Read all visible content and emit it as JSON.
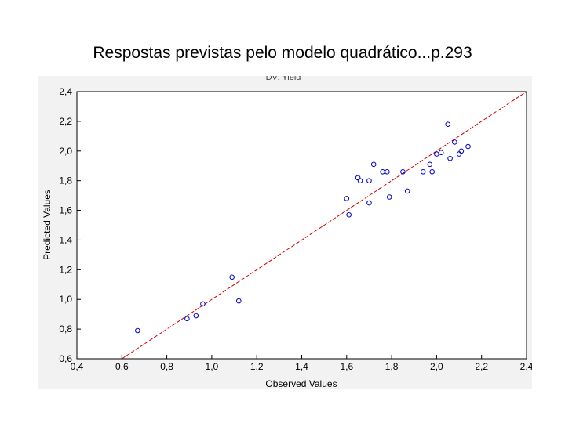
{
  "slide": {
    "title": "Respostas previstas pelo modelo quadrático...p.293"
  },
  "chart_data": {
    "type": "scatter",
    "title": "DV: Yield",
    "xlabel": "Observed Values",
    "ylabel": "Predicted Values",
    "xlim": [
      0.4,
      2.4
    ],
    "ylim": [
      0.6,
      2.4
    ],
    "x_ticks": [
      "0,4",
      "0,6",
      "0,8",
      "1,0",
      "1,2",
      "1,4",
      "1,6",
      "1,8",
      "2,0",
      "2,2",
      "2,4"
    ],
    "y_ticks": [
      "0,6",
      "0,8",
      "1,0",
      "1,2",
      "1,4",
      "1,6",
      "1,8",
      "2,0",
      "2,2",
      "2,4"
    ],
    "grid": false,
    "marker_color": "#0000cc",
    "line_color": "#cc0000",
    "fit_line": {
      "slope": 1.0,
      "intercept": 0.0
    },
    "points": [
      {
        "x": 0.67,
        "y": 0.79
      },
      {
        "x": 0.89,
        "y": 0.87
      },
      {
        "x": 0.93,
        "y": 0.89
      },
      {
        "x": 0.96,
        "y": 0.97
      },
      {
        "x": 1.09,
        "y": 1.15
      },
      {
        "x": 1.12,
        "y": 0.99
      },
      {
        "x": 1.6,
        "y": 1.68
      },
      {
        "x": 1.61,
        "y": 1.57
      },
      {
        "x": 1.65,
        "y": 1.82
      },
      {
        "x": 1.66,
        "y": 1.8
      },
      {
        "x": 1.7,
        "y": 1.8
      },
      {
        "x": 1.7,
        "y": 1.65
      },
      {
        "x": 1.72,
        "y": 1.91
      },
      {
        "x": 1.76,
        "y": 1.86
      },
      {
        "x": 1.78,
        "y": 1.86
      },
      {
        "x": 1.79,
        "y": 1.69
      },
      {
        "x": 1.85,
        "y": 1.86
      },
      {
        "x": 1.87,
        "y": 1.73
      },
      {
        "x": 1.94,
        "y": 1.86
      },
      {
        "x": 1.97,
        "y": 1.91
      },
      {
        "x": 1.98,
        "y": 1.86
      },
      {
        "x": 2.0,
        "y": 1.98
      },
      {
        "x": 2.02,
        "y": 1.99
      },
      {
        "x": 2.05,
        "y": 2.18
      },
      {
        "x": 2.06,
        "y": 1.95
      },
      {
        "x": 2.08,
        "y": 2.06
      },
      {
        "x": 2.1,
        "y": 1.98
      },
      {
        "x": 2.11,
        "y": 2.0
      },
      {
        "x": 2.14,
        "y": 2.03
      }
    ]
  }
}
